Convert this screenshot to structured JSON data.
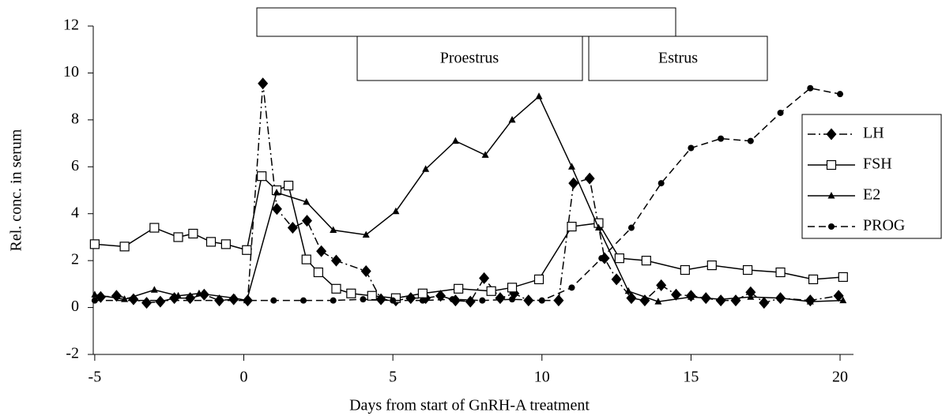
{
  "chart_data": {
    "type": "line",
    "xlabel": "Days from start of GnRH-A treatment",
    "ylabel": "Rel. conc. in serum",
    "annotations": [
      "Proestrus",
      "Estrus"
    ],
    "xlim": [
      -5.05,
      20.45
    ],
    "xticks": [
      -5,
      0,
      5,
      10,
      15,
      20
    ],
    "ylim": [
      -2,
      12
    ],
    "yticks": [
      -2,
      0,
      2,
      4,
      6,
      8,
      10,
      12
    ],
    "legend": "right",
    "series": [
      {
        "name": "LH",
        "color": "#000000",
        "line_style": "dashdot",
        "marker": "diamond",
        "x": [
          -4.8,
          -4.27,
          -3.7,
          -3.26,
          -2.8,
          -2.33,
          -1.8,
          -1.33,
          -0.82,
          -0.34,
          0.13,
          0.64,
          1.11,
          1.64,
          2.12,
          2.6,
          3.1,
          4.1,
          4.6,
          5.1,
          5.6,
          6.1,
          6.6,
          7.1,
          7.6,
          8.06,
          8.6,
          9.07,
          9.55,
          10.56,
          11.06,
          11.6,
          12.1,
          12.5,
          13.0,
          13.45,
          14.0,
          14.5,
          15.0,
          15.5,
          16.0,
          16.5,
          17.0,
          17.45,
          18.0,
          19.0,
          19.95
        ],
        "values": [
          0.45,
          0.5,
          0.35,
          0.2,
          0.25,
          0.4,
          0.4,
          0.55,
          0.3,
          0.35,
          0.3,
          9.55,
          4.2,
          3.4,
          3.7,
          2.4,
          2.0,
          1.55,
          0.35,
          0.3,
          0.4,
          0.4,
          0.5,
          0.3,
          0.25,
          1.25,
          0.4,
          0.6,
          0.3,
          0.3,
          5.3,
          5.5,
          2.1,
          1.2,
          0.4,
          0.3,
          0.95,
          0.55,
          0.5,
          0.4,
          0.3,
          0.3,
          0.65,
          0.2,
          0.4,
          0.3,
          0.5
        ]
      },
      {
        "name": "FSH",
        "color": "#000000",
        "line_style": "solid",
        "marker": "square",
        "x": [
          -5.0,
          -4.0,
          -3.0,
          -2.2,
          -1.7,
          -1.1,
          -0.6,
          0.1,
          0.6,
          1.1,
          1.5,
          2.1,
          2.5,
          3.1,
          3.6,
          4.3,
          5.1,
          6.0,
          7.2,
          8.3,
          9.0,
          9.9,
          11.0,
          11.9,
          12.6,
          13.5,
          14.8,
          15.7,
          16.9,
          18.0,
          19.1,
          20.1
        ],
        "values": [
          2.7,
          2.6,
          3.4,
          3.0,
          3.15,
          2.8,
          2.7,
          2.45,
          5.6,
          5.0,
          5.2,
          2.05,
          1.5,
          0.8,
          0.6,
          0.5,
          0.4,
          0.6,
          0.8,
          0.7,
          0.85,
          1.2,
          3.45,
          3.6,
          2.1,
          2.0,
          1.6,
          1.8,
          1.6,
          1.5,
          1.2,
          1.3
        ]
      },
      {
        "name": "E2",
        "color": "#000000",
        "line_style": "solid",
        "marker": "triangle",
        "x": [
          -5.0,
          -4.0,
          -3.0,
          -2.2,
          -1.5,
          -0.3,
          0.1,
          1.1,
          2.1,
          3.0,
          4.1,
          5.1,
          6.1,
          7.1,
          8.1,
          9.0,
          9.9,
          11.0,
          11.9,
          12.9,
          13.9,
          15.0,
          16.0,
          17.0,
          18.0,
          19.0,
          20.1
        ],
        "values": [
          0.55,
          0.35,
          0.75,
          0.5,
          0.6,
          0.4,
          0.3,
          4.9,
          4.5,
          3.3,
          3.1,
          4.1,
          5.9,
          7.1,
          6.5,
          8.0,
          9.0,
          6.0,
          3.4,
          0.7,
          0.25,
          0.45,
          0.35,
          0.45,
          0.4,
          0.25,
          0.3
        ]
      },
      {
        "name": "PROG",
        "color": "#000000",
        "line_style": "dashed",
        "marker": "circle",
        "x": [
          -5.0,
          1.0,
          2.0,
          3.0,
          4.0,
          5.0,
          6.0,
          7.0,
          8.0,
          9.0,
          10.0,
          11.0,
          12.0,
          13.0,
          14.0,
          15.0,
          16.0,
          17.0,
          18.0,
          19.0,
          20.0
        ],
        "values": [
          0.3,
          0.3,
          0.3,
          0.3,
          0.35,
          0.3,
          0.3,
          0.35,
          0.3,
          0.35,
          0.3,
          0.85,
          2.1,
          3.4,
          5.3,
          6.8,
          7.2,
          7.1,
          8.3,
          9.35,
          9.1
        ]
      }
    ]
  }
}
